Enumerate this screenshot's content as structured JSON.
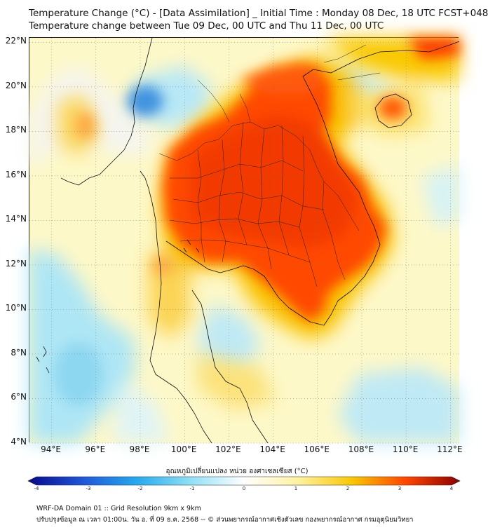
{
  "header": {
    "line1": "Temperature Change (°C) - [Data Assimilation] _ Initial Time : Monday 08 Dec, 18 UTC FCST+048",
    "line2": "Temperature change between Tue 09 Dec, 00 UTC and Thu 11 Dec, 00 UTC"
  },
  "map": {
    "lat_range": [
      4,
      22.2
    ],
    "lon_range": [
      93,
      112.4
    ],
    "lat_ticks": [
      {
        "value": 22,
        "label": "22°N"
      },
      {
        "value": 20,
        "label": "20°N"
      },
      {
        "value": 18,
        "label": "18°N"
      },
      {
        "value": 16,
        "label": "16°N"
      },
      {
        "value": 14,
        "label": "14°N"
      },
      {
        "value": 12,
        "label": "12°N"
      },
      {
        "value": 10,
        "label": "10°N"
      },
      {
        "value": 8,
        "label": "8°N"
      },
      {
        "value": 6,
        "label": "6°N"
      },
      {
        "value": 4,
        "label": "4°N"
      }
    ],
    "lon_ticks": [
      {
        "value": 94,
        "label": "94°E"
      },
      {
        "value": 96,
        "label": "96°E"
      },
      {
        "value": 98,
        "label": "98°E"
      },
      {
        "value": 100,
        "label": "100°E"
      },
      {
        "value": 102,
        "label": "102°E"
      },
      {
        "value": 104,
        "label": "104°E"
      },
      {
        "value": 106,
        "label": "106°E"
      },
      {
        "value": 108,
        "label": "108°E"
      },
      {
        "value": 110,
        "label": "110°E"
      },
      {
        "value": 112,
        "label": "112°E"
      }
    ],
    "gridlines": true,
    "gridline_style": "dotted",
    "background_color": "#fdf8c8"
  },
  "colorbar": {
    "title": "อุณหภูมิเปลี่ยนแปลง หน่วย องศาเซลเซียส (°C)",
    "min": -4,
    "max": 4,
    "ticks": [
      {
        "value": -4,
        "label": "-4"
      },
      {
        "value": -3,
        "label": "-3"
      },
      {
        "value": -2,
        "label": "-2"
      },
      {
        "value": -1,
        "label": "-1"
      },
      {
        "value": 0,
        "label": "0"
      },
      {
        "value": 1,
        "label": "1"
      },
      {
        "value": 2,
        "label": "2"
      },
      {
        "value": 3,
        "label": "3"
      },
      {
        "value": 4,
        "label": "4"
      }
    ],
    "colors": {
      "-4": "#08088a",
      "-3": "#1f55d8",
      "-2": "#25a8ee",
      "-1": "#8ee0f5",
      "0": "#ffffff",
      "1": "#fff2a0",
      "2": "#f9c800",
      "3": "#ff4500",
      "4": "#8b0000"
    }
  },
  "footer": {
    "line1": "WRF-DA Domain 01 :: Grid Resolution 9km x 9km",
    "line2": "ปรับปรุงข้อมูล ณ เวลา 01:00น. วัน อ. ที่ 09 ธ.ค. 2568 -- © ส่วนพยากรณ์อากาศเชิงตัวเลข กองพยากรณ์อากาศ กรมอุตุนิยมวิทยา"
  }
}
